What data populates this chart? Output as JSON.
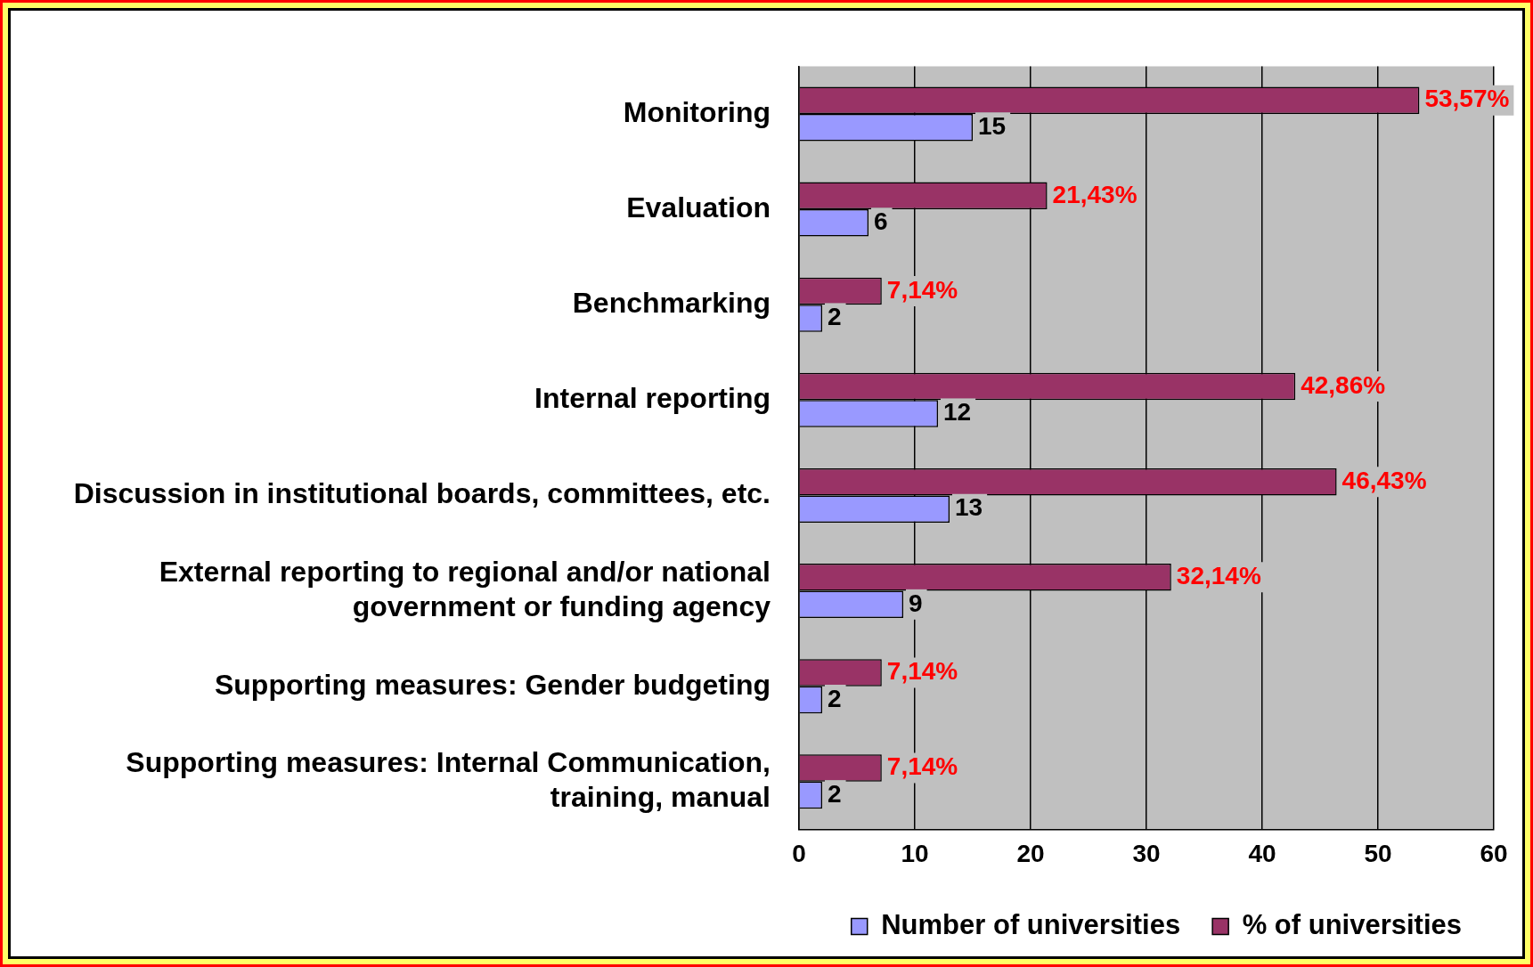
{
  "chart_data": {
    "type": "bar",
    "orientation": "horizontal",
    "categories": [
      "Monitoring",
      "Evaluation",
      "Benchmarking",
      "Internal reporting",
      "Discussion in institutional boards, committees, etc.",
      "External reporting to regional and/or national government or funding agency",
      "Supporting measures: Gender budgeting",
      "Supporting measures: Internal Communication, training, manual"
    ],
    "series": [
      {
        "name": "% of universities",
        "color": "#993366",
        "values": [
          53.57,
          21.43,
          7.14,
          42.86,
          46.43,
          32.14,
          7.14,
          7.14
        ],
        "value_labels": [
          "53,57%",
          "21,43%",
          "7,14%",
          "42,86%",
          "46,43%",
          "32,14%",
          "7,14%",
          "7,14%"
        ]
      },
      {
        "name": "Number of universities",
        "color": "#9999ff",
        "values": [
          15,
          6,
          2,
          12,
          13,
          9,
          2,
          2
        ],
        "value_labels": [
          "15",
          "6",
          "2",
          "12",
          "13",
          "9",
          "2",
          "2"
        ]
      }
    ],
    "xlim": [
      0,
      60
    ],
    "xticks": [
      0,
      10,
      20,
      30,
      40,
      50,
      60
    ],
    "grid": "x",
    "legend": "bottom"
  }
}
